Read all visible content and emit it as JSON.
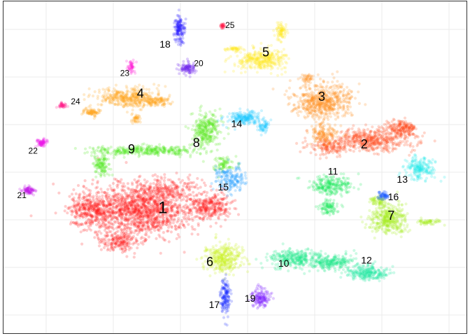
{
  "chart_data": {
    "type": "scatter",
    "title": "",
    "xlabel": "",
    "ylabel": "",
    "grid": true,
    "legend": "none",
    "xlim": [
      0,
      100
    ],
    "ylim": [
      0,
      100
    ],
    "clusters": [
      {
        "label": "1",
        "color": "#ff1a1a",
        "x": 34.5,
        "y": 37.0
      },
      {
        "label": "2",
        "color": "#ff4a1a",
        "x": 79.5,
        "y": 57.0
      },
      {
        "label": "3",
        "color": "#ff8c1a",
        "x": 70.0,
        "y": 72.0
      },
      {
        "label": "4",
        "color": "#ffa31a",
        "x": 29.5,
        "y": 73.0
      },
      {
        "label": "5",
        "color": "#ffe61a",
        "x": 57.5,
        "y": 86.0
      },
      {
        "label": "6",
        "color": "#c8f01a",
        "x": 45.0,
        "y": 20.0
      },
      {
        "label": "7",
        "color": "#a6ec1a",
        "x": 85.5,
        "y": 34.5
      },
      {
        "label": "8",
        "color": "#55ea1a",
        "x": 42.0,
        "y": 57.5
      },
      {
        "label": "9",
        "color": "#4de81a",
        "x": 27.5,
        "y": 55.5
      },
      {
        "label": "10",
        "color": "#1aea8a",
        "x": 61.5,
        "y": 19.5
      },
      {
        "label": "11",
        "color": "#1ae65a",
        "x": 72.5,
        "y": 48.5
      },
      {
        "label": "12",
        "color": "#1ae6a0",
        "x": 80.0,
        "y": 20.5
      },
      {
        "label": "13",
        "color": "#1ae6e6",
        "x": 88.0,
        "y": 46.0
      },
      {
        "label": "14",
        "color": "#1ac8ff",
        "x": 51.0,
        "y": 63.5
      },
      {
        "label": "15",
        "color": "#1a9cff",
        "x": 48.0,
        "y": 43.5
      },
      {
        "label": "16",
        "color": "#1a5aff",
        "x": 86.0,
        "y": 40.5
      },
      {
        "label": "17",
        "color": "#1a2cff",
        "x": 46.0,
        "y": 6.5
      },
      {
        "label": "18",
        "color": "#2a1aff",
        "x": 35.0,
        "y": 88.5
      },
      {
        "label": "19",
        "color": "#7a1aff",
        "x": 54.0,
        "y": 8.5
      },
      {
        "label": "20",
        "color": "#6a1aee",
        "x": 42.5,
        "y": 82.5
      },
      {
        "label": "21",
        "color": "#c21ae6",
        "x": 3.0,
        "y": 41.0
      },
      {
        "label": "22",
        "color": "#ee1ae6",
        "x": 5.5,
        "y": 55.0
      },
      {
        "label": "23",
        "color": "#ff1ad6",
        "x": 26.0,
        "y": 79.5
      },
      {
        "label": "24",
        "color": "#ff1a8a",
        "x": 15.0,
        "y": 70.5
      },
      {
        "label": "25",
        "color": "#ff1a4a",
        "x": 49.5,
        "y": 94.5
      }
    ]
  }
}
